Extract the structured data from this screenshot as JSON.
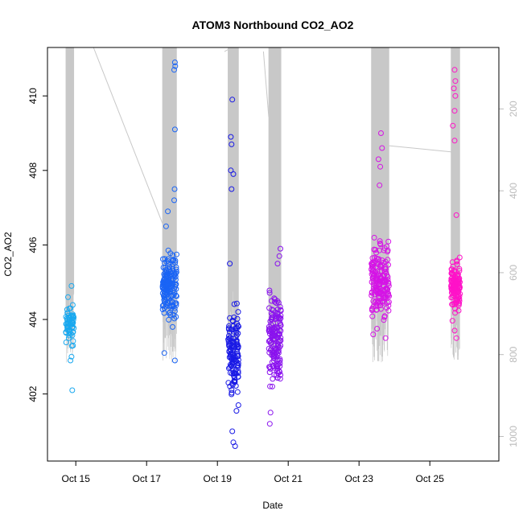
{
  "chart_data": {
    "type": "scatter",
    "title": "ATOM3 Northbound CO2_AO2",
    "xlabel": "Date",
    "ylabel": "CO2_AO2",
    "x_ticks": [
      "Oct 15",
      "Oct 17",
      "Oct 19",
      "Oct 21",
      "Oct 23",
      "Oct 25"
    ],
    "x_tick_values": [
      15,
      17,
      19,
      21,
      23,
      25
    ],
    "xlim": [
      14.2,
      26.95
    ],
    "y_ticks": [
      "402",
      "404",
      "406",
      "408",
      "410"
    ],
    "y_tick_values": [
      402,
      404,
      406,
      408,
      410
    ],
    "ylim": [
      400.2,
      411.3
    ],
    "y2_ticks": [
      "200",
      "400",
      "600",
      "800",
      "1000"
    ],
    "y2_tick_values": [
      200,
      400,
      600,
      800,
      1000
    ],
    "y2lim_top_bottom": [
      50,
      1060
    ],
    "y2_axis_reversed": true,
    "y2_label": "",
    "secondary_line_color": "#c8c8c8",
    "grid": false,
    "legend": "none",
    "marker": "open-circle",
    "color_gradient": [
      "#00b4ef",
      "#1560ff",
      "#1515e8",
      "#8a10f0",
      "#e010e0",
      "#ff10c0"
    ],
    "series": [
      {
        "color": "#19a8ef",
        "x_range": [
          14.72,
          14.95
        ],
        "y_median": 403.9,
        "y_spread": 0.4,
        "count": 60,
        "points": [
          [
            14.9,
            402.1
          ],
          [
            14.88,
            403.0
          ],
          [
            14.85,
            402.9
          ],
          [
            14.88,
            404.9
          ],
          [
            14.78,
            404.6
          ],
          [
            14.8,
            403.5
          ],
          [
            14.92,
            403.3
          ]
        ]
      },
      {
        "color": "#1a64f5",
        "x_range": [
          17.45,
          17.85
        ],
        "y_median": 404.9,
        "y_spread": 0.7,
        "count": 170,
        "points": [
          [
            17.8,
            410.9
          ],
          [
            17.81,
            410.8
          ],
          [
            17.78,
            410.7
          ],
          [
            17.8,
            409.1
          ],
          [
            17.79,
            407.5
          ],
          [
            17.6,
            406.9
          ],
          [
            17.8,
            402.9
          ],
          [
            17.5,
            403.1
          ],
          [
            17.78,
            407.2
          ],
          [
            17.55,
            406.5
          ]
        ]
      },
      {
        "color": "#1a1ae5",
        "x_range": [
          19.3,
          19.6
        ],
        "y_median": 403.0,
        "y_spread": 1.0,
        "count": 130,
        "points": [
          [
            19.42,
            409.9
          ],
          [
            19.38,
            408.9
          ],
          [
            19.4,
            408.7
          ],
          [
            19.38,
            408.0
          ],
          [
            19.45,
            407.9
          ],
          [
            19.4,
            407.5
          ],
          [
            19.5,
            400.6
          ],
          [
            19.45,
            400.7
          ],
          [
            19.42,
            401.0
          ],
          [
            19.35,
            405.5
          ]
        ]
      },
      {
        "color": "#8a12ee",
        "x_range": [
          20.45,
          20.8
        ],
        "y_median": 403.5,
        "y_spread": 0.9,
        "count": 150,
        "points": [
          [
            20.48,
            401.2
          ],
          [
            20.5,
            401.5
          ],
          [
            20.78,
            405.9
          ],
          [
            20.75,
            405.7
          ],
          [
            20.7,
            405.5
          ],
          [
            20.55,
            402.2
          ]
        ]
      },
      {
        "color": "#d514e6",
        "x_range": [
          23.35,
          23.85
        ],
        "y_median": 405.0,
        "y_spread": 0.9,
        "count": 180,
        "points": [
          [
            23.62,
            409.0
          ],
          [
            23.65,
            408.6
          ],
          [
            23.55,
            408.3
          ],
          [
            23.6,
            408.1
          ],
          [
            23.75,
            403.5
          ],
          [
            23.4,
            403.6
          ],
          [
            23.58,
            407.6
          ]
        ]
      },
      {
        "color": "#ff12c8",
        "x_range": [
          25.6,
          25.85
        ],
        "y_median": 404.9,
        "y_spread": 0.5,
        "count": 130,
        "points": [
          [
            25.7,
            410.7
          ],
          [
            25.72,
            410.4
          ],
          [
            25.68,
            410.2
          ],
          [
            25.72,
            410.0
          ],
          [
            25.7,
            409.6
          ],
          [
            25.75,
            403.5
          ],
          [
            25.7,
            403.7
          ],
          [
            25.65,
            409.2
          ],
          [
            25.7,
            408.8
          ],
          [
            25.75,
            406.8
          ]
        ]
      }
    ]
  }
}
